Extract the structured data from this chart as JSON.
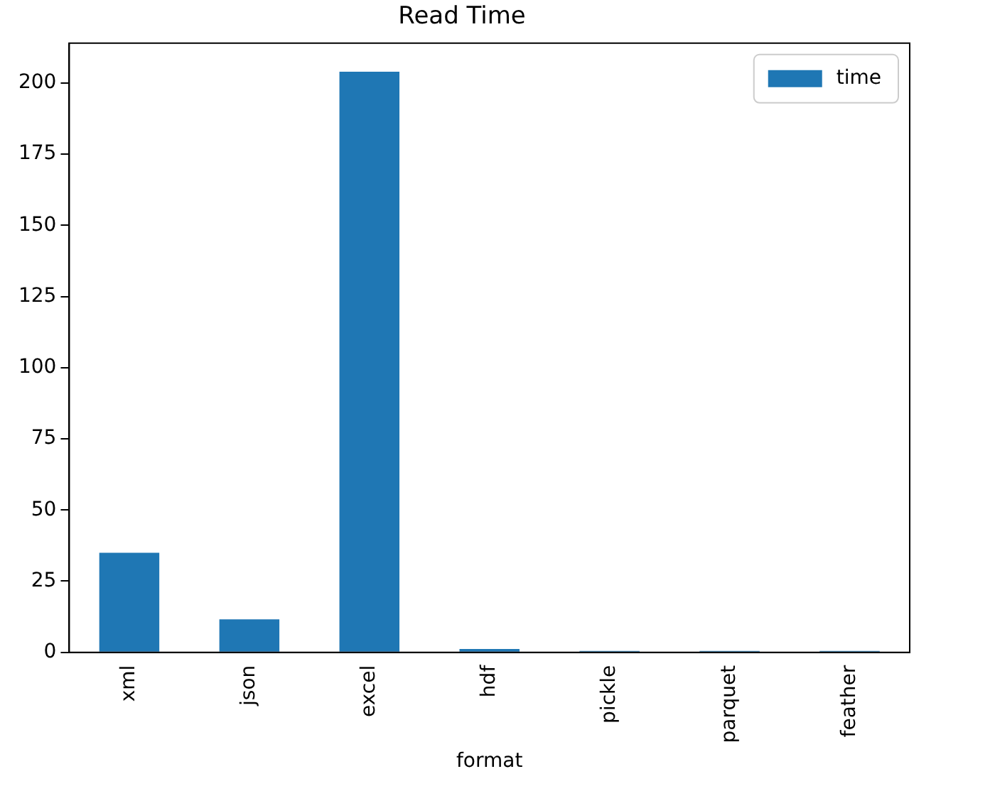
{
  "chart_data": {
    "type": "bar",
    "title": "Read Time",
    "xlabel": "format",
    "categories": [
      "xml",
      "json",
      "excel",
      "hdf",
      "pickle",
      "parquet",
      "feather"
    ],
    "series": [
      {
        "name": "time",
        "color": "#1f77b4",
        "values": [
          35,
          11.6,
          204,
          1.2,
          0.5,
          0.5,
          0.5
        ]
      }
    ],
    "ylim": [
      0,
      214
    ],
    "yticks": [
      0,
      25,
      50,
      75,
      100,
      125,
      150,
      175,
      200
    ],
    "grid": false,
    "legend": "top right"
  }
}
